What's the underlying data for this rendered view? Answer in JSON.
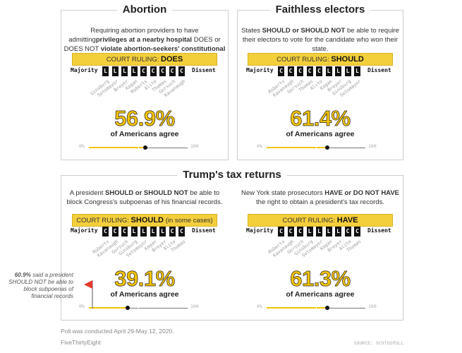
{
  "chart_data": [
    {
      "type": "bar",
      "title": "Abortion",
      "question": [
        "Requiring abortion providers to have admitting",
        "privileges at a nearby hospital ",
        "DOES or DOES NOT",
        " violate abortion-seekers' constitutional rights."
      ],
      "ruling_prefix": "COURT RULING:",
      "ruling": "DOES",
      "ruling_suffix": "",
      "majority_label": "Majority",
      "dissent_label": "Dissent",
      "majority_votes": [
        "L",
        "L",
        "L",
        "L",
        "C"
      ],
      "dissent_votes": [
        "C",
        "C",
        "C",
        "C"
      ],
      "justices": [
        "Ginsburg",
        "Sotomayor",
        "Breyer",
        "Kagan",
        "Roberts",
        "Alito",
        "Thomas",
        "Gorsuch",
        "Kavanaugh"
      ],
      "percent_value": 56.9,
      "percent_label": "56.9%",
      "agree_label": "of Americans agree",
      "scale_min_label": "0%",
      "scale_max_label": "100"
    },
    {
      "type": "bar",
      "title": "Faithless electors",
      "question": [
        "States ",
        "SHOULD or SHOULD NOT",
        " be able to require their electors to vote for the candidate who won their state."
      ],
      "ruling_prefix": "COURT RULING:",
      "ruling": "SHOULD",
      "ruling_suffix": "",
      "majority_label": "Majority",
      "dissent_label": "Dissent",
      "majority_votes": [
        "C",
        "C",
        "C",
        "C",
        "C",
        "L",
        "L",
        "L",
        "L"
      ],
      "dissent_votes": [],
      "justices": [
        "Roberts",
        "Kavanaugh",
        "Gorsuch",
        "Thomas",
        "Alito",
        "Kagan",
        "Breyer",
        "Ginsburg",
        "Sotomayor"
      ],
      "percent_value": 61.4,
      "percent_label": "61.4%",
      "agree_label": "of Americans agree",
      "scale_min_label": "0%",
      "scale_max_label": "100"
    },
    {
      "type": "bar",
      "title": "",
      "question": [
        "A president ",
        "SHOULD or SHOULD NOT",
        " be able to block Congress's subpoenas of his financial records."
      ],
      "ruling_prefix": "COURT RULING:",
      "ruling": "SHOULD",
      "ruling_suffix": " (in some cases)",
      "majority_label": "Majority",
      "dissent_label": "Dissent",
      "majority_votes": [
        "C",
        "C",
        "C",
        "L",
        "L",
        "L",
        "L"
      ],
      "dissent_votes": [
        "C",
        "C"
      ],
      "justices": [
        "Roberts",
        "Kavanaugh",
        "Gorsuch",
        "Ginsburg",
        "Sotomayor",
        "Kagan",
        "Breyer",
        "Alito",
        "Thomas"
      ],
      "percent_value": 39.1,
      "percent_label": "39.1%",
      "agree_label": "of Americans agree",
      "scale_min_label": "0%",
      "scale_max_label": "100"
    },
    {
      "type": "bar",
      "title": "",
      "question": [
        "New York state prosecutors ",
        "HAVE or DO NOT HAVE",
        " the right to obtain a president's tax records."
      ],
      "ruling_prefix": "COURT RULING:",
      "ruling": "HAVE",
      "ruling_suffix": "",
      "majority_label": "Majority",
      "dissent_label": "Dissent",
      "majority_votes": [
        "C",
        "C",
        "C",
        "L",
        "L",
        "L",
        "L"
      ],
      "dissent_votes": [
        "C",
        "C"
      ],
      "justices": [
        "Roberts",
        "Kavanaugh",
        "Gorsuch",
        "Ginsburg",
        "Sotomayor",
        "Kagan",
        "Breyer",
        "Alito",
        "Thomas"
      ],
      "percent_value": 61.3,
      "percent_label": "61.3%",
      "agree_label": "of Americans agree",
      "scale_min_label": "0%",
      "scale_max_label": "100"
    }
  ],
  "group_title": "Trump's tax returns",
  "annotation": {
    "bold": "60.9%",
    "rest": " said a president SHOULD NOT be able to block subpoenas of financial records"
  },
  "footer": {
    "poll_note": "Poll was conducted April 29-May 12, 2020.",
    "brand": "FiveThirtyEight",
    "source": "SOURCE: SCOTUSPOLL"
  },
  "colors": {
    "accent": "#f2c200",
    "ruling_bg": "#f4cf3c",
    "vote_box": "#111111",
    "flag": "#e8382c"
  }
}
